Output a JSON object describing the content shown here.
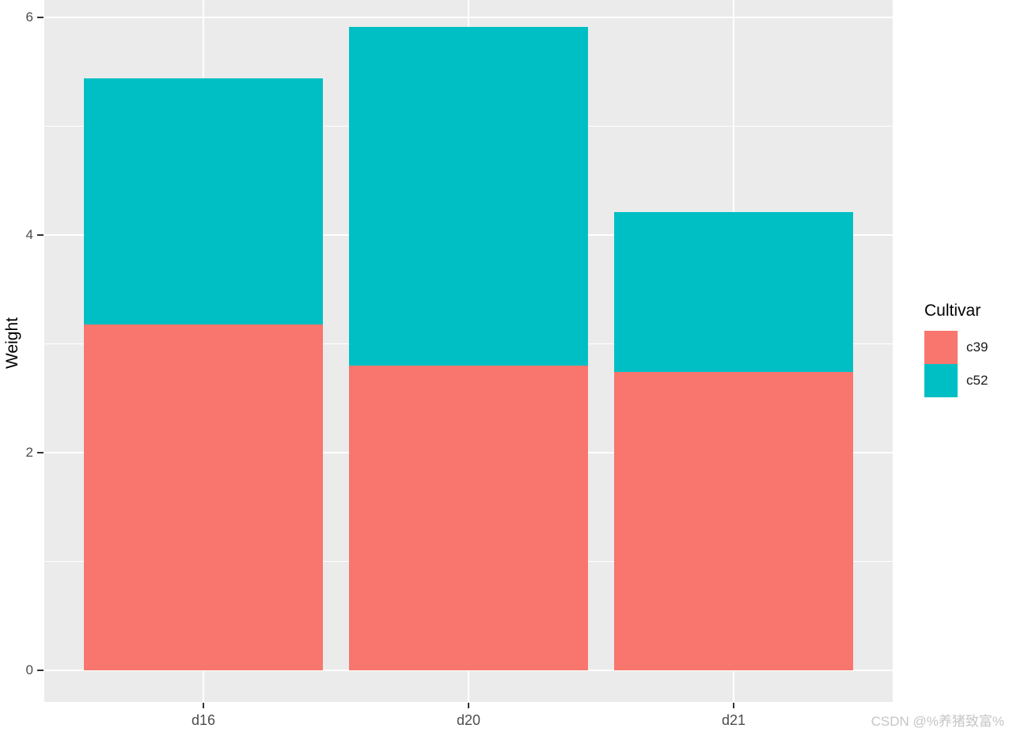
{
  "watermark": "CSDN @%养猪致富%",
  "chart_data": {
    "type": "bar",
    "stacked": true,
    "title": "",
    "xlabel": "",
    "ylabel": "Weight",
    "categories": [
      "d16",
      "d20",
      "d21"
    ],
    "series": [
      {
        "name": "c39",
        "color": "#F8766D",
        "values": [
          3.18,
          2.8,
          2.74
        ]
      },
      {
        "name": "c52",
        "color": "#00BFC4",
        "values": [
          2.26,
          3.11,
          1.47
        ]
      }
    ],
    "totals": [
      5.44,
      5.91,
      4.21
    ],
    "legend_title": "Cultivar",
    "legend_position": "right",
    "y_ticks": [
      0,
      2,
      4,
      6
    ],
    "y_minor_ticks": [
      1,
      3,
      5
    ],
    "ylim": [
      -0.3,
      6.2
    ],
    "grid": true,
    "panel_background": "#EBEBEB",
    "grid_color": "#FFFFFF",
    "axis_text_color": "#4D4D4D"
  }
}
